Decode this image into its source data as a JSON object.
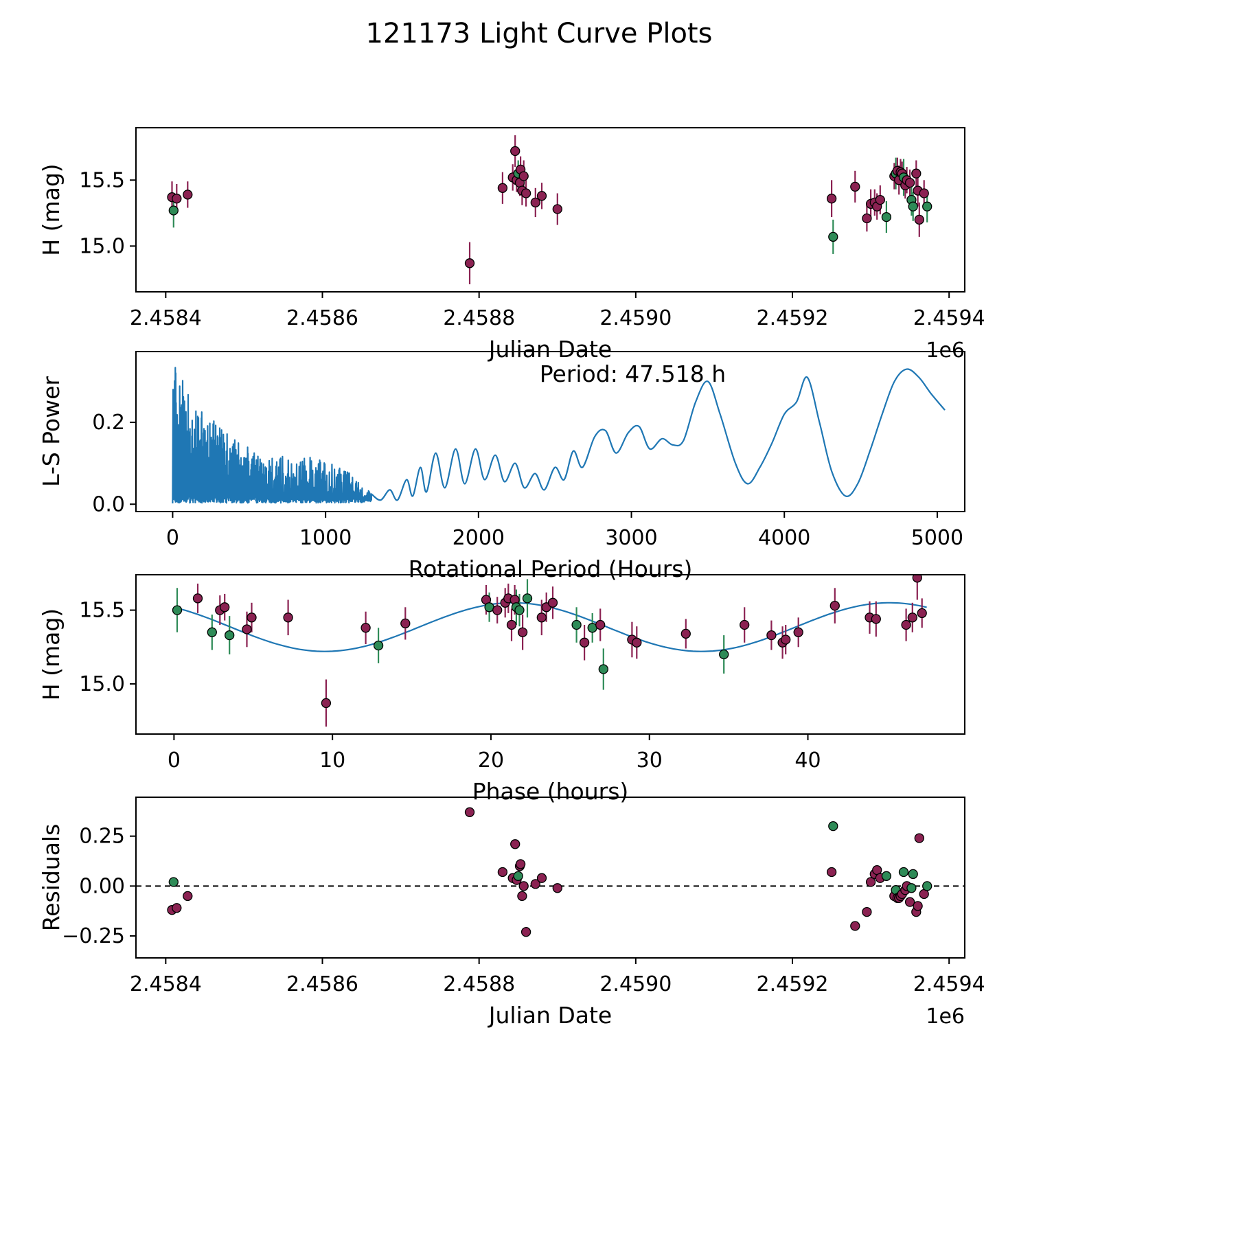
{
  "title": "121173 Light Curve Plots",
  "colors": {
    "m": "#8b2252",
    "g": "#2e8b57",
    "line": "#1f77b4",
    "axis": "#000000"
  },
  "chart_data": [
    {
      "id": "lightcurve",
      "type": "scatter",
      "xlabel": "Julian Date",
      "ylabel": "H (mag)",
      "offset_text": "1e6",
      "xlim": [
        2.458362,
        2.45942
      ],
      "ylim": [
        14.653,
        15.897
      ],
      "xticks": {
        "values": [
          2.4584,
          2.4586,
          2.4588,
          2.459,
          2.4592,
          2.4594
        ],
        "labels": [
          "2.4584",
          "2.4586",
          "2.4588",
          "2.4590",
          "2.4592",
          "2.4594"
        ]
      },
      "yticks": {
        "values": [
          15.0,
          15.5
        ],
        "labels": [
          "15.0",
          "15.5"
        ]
      },
      "points": [
        [
          2.458408,
          15.37,
          0.12,
          "m"
        ],
        [
          2.45841,
          15.27,
          0.13,
          "g"
        ],
        [
          2.458414,
          15.36,
          0.11,
          "m"
        ],
        [
          2.458428,
          15.39,
          0.1,
          "m"
        ],
        [
          2.458788,
          14.87,
          0.16,
          "m"
        ],
        [
          2.45883,
          15.44,
          0.12,
          "m"
        ],
        [
          2.458843,
          15.52,
          0.1,
          "m"
        ],
        [
          2.458846,
          15.72,
          0.12,
          "m"
        ],
        [
          2.458848,
          15.5,
          0.09,
          "m"
        ],
        [
          2.45885,
          15.55,
          0.1,
          "g"
        ],
        [
          2.458852,
          15.48,
          0.1,
          "m"
        ],
        [
          2.458853,
          15.58,
          0.1,
          "m"
        ],
        [
          2.458855,
          15.42,
          0.11,
          "m"
        ],
        [
          2.458857,
          15.53,
          0.12,
          "m"
        ],
        [
          2.45886,
          15.4,
          0.1,
          "m"
        ],
        [
          2.458872,
          15.33,
          0.11,
          "m"
        ],
        [
          2.45888,
          15.38,
          0.1,
          "m"
        ],
        [
          2.4589,
          15.28,
          0.12,
          "m"
        ],
        [
          2.45925,
          15.36,
          0.14,
          "m"
        ],
        [
          2.459252,
          15.07,
          0.13,
          "g"
        ],
        [
          2.45928,
          15.45,
          0.12,
          "m"
        ],
        [
          2.459295,
          15.21,
          0.1,
          "m"
        ],
        [
          2.4593,
          15.32,
          0.11,
          "m"
        ],
        [
          2.459305,
          15.33,
          0.1,
          "m"
        ],
        [
          2.459308,
          15.3,
          0.1,
          "m"
        ],
        [
          2.459312,
          15.35,
          0.11,
          "m"
        ],
        [
          2.45932,
          15.22,
          0.12,
          "g"
        ],
        [
          2.45933,
          15.53,
          0.1,
          "m"
        ],
        [
          2.459332,
          15.55,
          0.12,
          "g"
        ],
        [
          2.459334,
          15.57,
          0.1,
          "m"
        ],
        [
          2.459336,
          15.5,
          0.11,
          "m"
        ],
        [
          2.459338,
          15.56,
          0.1,
          "m"
        ],
        [
          2.45934,
          15.55,
          0.09,
          "m"
        ],
        [
          2.459342,
          15.52,
          0.14,
          "g"
        ],
        [
          2.459344,
          15.46,
          0.1,
          "m"
        ],
        [
          2.459346,
          15.5,
          0.1,
          "m"
        ],
        [
          2.45935,
          15.48,
          0.1,
          "m"
        ],
        [
          2.459352,
          15.35,
          0.12,
          "g"
        ],
        [
          2.459354,
          15.3,
          0.11,
          "g"
        ],
        [
          2.459358,
          15.55,
          0.1,
          "m"
        ],
        [
          2.45936,
          15.42,
          0.12,
          "m"
        ],
        [
          2.459362,
          15.2,
          0.13,
          "m"
        ],
        [
          2.459368,
          15.4,
          0.1,
          "m"
        ],
        [
          2.459372,
          15.3,
          0.12,
          "g"
        ]
      ]
    },
    {
      "id": "periodogram",
      "type": "line",
      "annotation": "Period: 47.518 h",
      "xlabel": "Rotational Period (Hours)",
      "ylabel": "L-S Power",
      "xlim": [
        -240,
        5180
      ],
      "ylim": [
        -0.018,
        0.373
      ],
      "xticks": {
        "values": [
          0,
          1000,
          2000,
          3000,
          4000,
          5000
        ],
        "labels": [
          "0",
          "1000",
          "2000",
          "3000",
          "4000",
          "5000"
        ]
      },
      "yticks": {
        "values": [
          0.0,
          0.2
        ],
        "labels": [
          "0.0",
          "0.2"
        ]
      },
      "noise_end": 1300,
      "noise_envelope": [
        [
          0,
          0.36
        ],
        [
          40,
          0.355
        ],
        [
          90,
          0.3
        ],
        [
          150,
          0.25
        ],
        [
          220,
          0.21
        ],
        [
          300,
          0.2
        ],
        [
          380,
          0.17
        ],
        [
          460,
          0.155
        ],
        [
          540,
          0.13
        ],
        [
          620,
          0.11
        ],
        [
          700,
          0.12
        ],
        [
          780,
          0.105
        ],
        [
          860,
          0.115
        ],
        [
          940,
          0.12
        ],
        [
          1020,
          0.1
        ],
        [
          1100,
          0.09
        ],
        [
          1180,
          0.07
        ],
        [
          1240,
          0.05
        ],
        [
          1300,
          0.03
        ]
      ],
      "smooth_points": [
        [
          1300,
          0.025
        ],
        [
          1360,
          0.01
        ],
        [
          1420,
          0.035
        ],
        [
          1470,
          0.01
        ],
        [
          1530,
          0.06
        ],
        [
          1570,
          0.02
        ],
        [
          1620,
          0.09
        ],
        [
          1660,
          0.03
        ],
        [
          1720,
          0.125
        ],
        [
          1780,
          0.04
        ],
        [
          1850,
          0.135
        ],
        [
          1910,
          0.05
        ],
        [
          1980,
          0.135
        ],
        [
          2040,
          0.06
        ],
        [
          2110,
          0.12
        ],
        [
          2170,
          0.055
        ],
        [
          2240,
          0.1
        ],
        [
          2300,
          0.04
        ],
        [
          2370,
          0.075
        ],
        [
          2430,
          0.035
        ],
        [
          2500,
          0.09
        ],
        [
          2560,
          0.06
        ],
        [
          2620,
          0.13
        ],
        [
          2680,
          0.09
        ],
        [
          2760,
          0.165
        ],
        [
          2830,
          0.18
        ],
        [
          2900,
          0.125
        ],
        [
          2980,
          0.175
        ],
        [
          3050,
          0.19
        ],
        [
          3120,
          0.135
        ],
        [
          3200,
          0.16
        ],
        [
          3270,
          0.145
        ],
        [
          3340,
          0.155
        ],
        [
          3420,
          0.25
        ],
        [
          3500,
          0.3
        ],
        [
          3580,
          0.22
        ],
        [
          3680,
          0.1
        ],
        [
          3760,
          0.05
        ],
        [
          3840,
          0.09
        ],
        [
          3920,
          0.15
        ],
        [
          4000,
          0.22
        ],
        [
          4080,
          0.25
        ],
        [
          4150,
          0.31
        ],
        [
          4230,
          0.2
        ],
        [
          4310,
          0.08
        ],
        [
          4400,
          0.02
        ],
        [
          4480,
          0.05
        ],
        [
          4560,
          0.13
        ],
        [
          4640,
          0.22
        ],
        [
          4720,
          0.3
        ],
        [
          4800,
          0.33
        ],
        [
          4880,
          0.31
        ],
        [
          4960,
          0.27
        ],
        [
          5050,
          0.23
        ]
      ]
    },
    {
      "id": "phase",
      "type": "scatter",
      "xlabel": "Phase (hours)",
      "ylabel": "H (mag)",
      "xlim": [
        -2.4,
        49.9
      ],
      "ylim": [
        14.66,
        15.74
      ],
      "xticks": {
        "values": [
          0,
          10,
          20,
          30,
          40
        ],
        "labels": [
          "0",
          "10",
          "20",
          "30",
          "40"
        ]
      },
      "yticks": {
        "values": [
          15.0,
          15.5
        ],
        "labels": [
          "15.0",
          "15.5"
        ]
      },
      "fit": {
        "mean": 15.385,
        "amplitude": 0.165,
        "period": 23.759,
        "phase_of_max": 21.4,
        "x_start": 0,
        "x_end": 47.518
      },
      "points": [
        [
          0.2,
          15.5,
          0.15,
          "g"
        ],
        [
          1.5,
          15.58,
          0.1,
          "m"
        ],
        [
          2.4,
          15.35,
          0.12,
          "g"
        ],
        [
          2.9,
          15.5,
          0.1,
          "m"
        ],
        [
          3.2,
          15.52,
          0.09,
          "m"
        ],
        [
          3.5,
          15.33,
          0.13,
          "g"
        ],
        [
          4.6,
          15.37,
          0.12,
          "m"
        ],
        [
          4.9,
          15.45,
          0.1,
          "m"
        ],
        [
          7.2,
          15.45,
          0.12,
          "m"
        ],
        [
          9.6,
          14.87,
          0.16,
          "m"
        ],
        [
          12.1,
          15.38,
          0.11,
          "m"
        ],
        [
          12.9,
          15.26,
          0.12,
          "g"
        ],
        [
          14.6,
          15.41,
          0.11,
          "m"
        ],
        [
          19.7,
          15.57,
          0.1,
          "m"
        ],
        [
          19.9,
          15.52,
          0.1,
          "g"
        ],
        [
          20.4,
          15.5,
          0.09,
          "m"
        ],
        [
          20.9,
          15.55,
          0.1,
          "m"
        ],
        [
          21.1,
          15.58,
          0.1,
          "m"
        ],
        [
          21.3,
          15.4,
          0.11,
          "m"
        ],
        [
          21.5,
          15.57,
          0.1,
          "m"
        ],
        [
          21.6,
          15.52,
          0.12,
          "g"
        ],
        [
          21.8,
          15.5,
          0.11,
          "g"
        ],
        [
          22.0,
          15.35,
          0.12,
          "m"
        ],
        [
          22.3,
          15.58,
          0.13,
          "g"
        ],
        [
          23.2,
          15.45,
          0.12,
          "m"
        ],
        [
          23.5,
          15.52,
          0.1,
          "m"
        ],
        [
          23.9,
          15.55,
          0.11,
          "m"
        ],
        [
          25.4,
          15.4,
          0.12,
          "g"
        ],
        [
          25.9,
          15.28,
          0.12,
          "m"
        ],
        [
          26.4,
          15.38,
          0.1,
          "g"
        ],
        [
          26.9,
          15.4,
          0.11,
          "m"
        ],
        [
          27.1,
          15.1,
          0.14,
          "g"
        ],
        [
          28.9,
          15.3,
          0.12,
          "m"
        ],
        [
          29.2,
          15.28,
          0.11,
          "m"
        ],
        [
          32.3,
          15.34,
          0.1,
          "m"
        ],
        [
          34.7,
          15.2,
          0.13,
          "g"
        ],
        [
          36.0,
          15.4,
          0.12,
          "m"
        ],
        [
          37.7,
          15.33,
          0.1,
          "m"
        ],
        [
          38.4,
          15.28,
          0.11,
          "m"
        ],
        [
          38.6,
          15.3,
          0.1,
          "m"
        ],
        [
          39.4,
          15.35,
          0.1,
          "m"
        ],
        [
          41.7,
          15.53,
          0.12,
          "m"
        ],
        [
          43.9,
          15.45,
          0.11,
          "m"
        ],
        [
          44.3,
          15.44,
          0.12,
          "m"
        ],
        [
          46.2,
          15.4,
          0.11,
          "m"
        ],
        [
          46.6,
          15.45,
          0.1,
          "m"
        ],
        [
          46.9,
          15.72,
          0.15,
          "m"
        ],
        [
          47.2,
          15.48,
          0.1,
          "m"
        ]
      ]
    },
    {
      "id": "residuals",
      "type": "scatter",
      "xlabel": "Julian Date",
      "ylabel": "Residuals",
      "offset_text": "1e6",
      "zero_line": 0.0,
      "xlim": [
        2.458362,
        2.45942
      ],
      "ylim": [
        -0.36,
        0.445
      ],
      "xticks": {
        "values": [
          2.4584,
          2.4586,
          2.4588,
          2.459,
          2.4592,
          2.4594
        ],
        "labels": [
          "2.4584",
          "2.4586",
          "2.4588",
          "2.4590",
          "2.4592",
          "2.4594"
        ]
      },
      "yticks": {
        "values": [
          -0.25,
          0.0,
          0.25
        ],
        "labels": [
          "−0.25",
          "0.00",
          "0.25"
        ]
      },
      "points": [
        [
          2.458408,
          -0.12,
          "m"
        ],
        [
          2.45841,
          0.02,
          "g"
        ],
        [
          2.458414,
          -0.11,
          "m"
        ],
        [
          2.458428,
          -0.05,
          "m"
        ],
        [
          2.458788,
          0.37,
          "m"
        ],
        [
          2.45883,
          0.07,
          "m"
        ],
        [
          2.458843,
          0.04,
          "m"
        ],
        [
          2.458846,
          0.21,
          "m"
        ],
        [
          2.458848,
          0.03,
          "m"
        ],
        [
          2.45885,
          0.05,
          "g"
        ],
        [
          2.458852,
          0.1,
          "m"
        ],
        [
          2.458853,
          0.11,
          "m"
        ],
        [
          2.458855,
          -0.05,
          "m"
        ],
        [
          2.458857,
          0.0,
          "m"
        ],
        [
          2.45886,
          -0.23,
          "m"
        ],
        [
          2.458872,
          0.01,
          "m"
        ],
        [
          2.45888,
          0.04,
          "m"
        ],
        [
          2.4589,
          -0.01,
          "m"
        ],
        [
          2.45925,
          0.07,
          "m"
        ],
        [
          2.459252,
          0.3,
          "g"
        ],
        [
          2.45928,
          -0.2,
          "m"
        ],
        [
          2.459295,
          -0.13,
          "m"
        ],
        [
          2.4593,
          0.02,
          "m"
        ],
        [
          2.459305,
          0.06,
          "m"
        ],
        [
          2.459308,
          0.08,
          "m"
        ],
        [
          2.459312,
          0.04,
          "m"
        ],
        [
          2.45932,
          0.05,
          "g"
        ],
        [
          2.45933,
          -0.05,
          "m"
        ],
        [
          2.459332,
          -0.02,
          "g"
        ],
        [
          2.459334,
          -0.06,
          "m"
        ],
        [
          2.459336,
          -0.06,
          "m"
        ],
        [
          2.459338,
          -0.05,
          "m"
        ],
        [
          2.45934,
          -0.04,
          "m"
        ],
        [
          2.459342,
          0.07,
          "g"
        ],
        [
          2.459344,
          -0.02,
          "m"
        ],
        [
          2.459346,
          0.0,
          "m"
        ],
        [
          2.45935,
          -0.08,
          "m"
        ],
        [
          2.459352,
          -0.01,
          "g"
        ],
        [
          2.459354,
          0.06,
          "g"
        ],
        [
          2.459358,
          -0.13,
          "m"
        ],
        [
          2.45936,
          -0.1,
          "m"
        ],
        [
          2.459362,
          0.24,
          "m"
        ],
        [
          2.459368,
          -0.04,
          "m"
        ],
        [
          2.459372,
          0.0,
          "g"
        ]
      ]
    }
  ]
}
